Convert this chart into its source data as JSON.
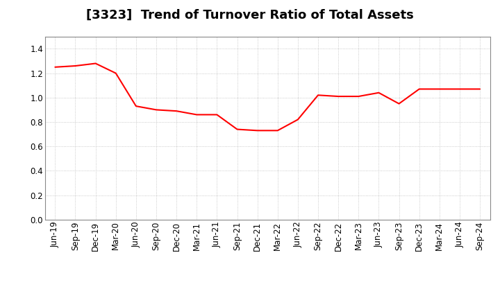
{
  "title": "[3323]  Trend of Turnover Ratio of Total Assets",
  "x_labels": [
    "Jun-19",
    "Sep-19",
    "Dec-19",
    "Mar-20",
    "Jun-20",
    "Sep-20",
    "Dec-20",
    "Mar-21",
    "Jun-21",
    "Sep-21",
    "Dec-21",
    "Mar-22",
    "Jun-22",
    "Sep-22",
    "Dec-22",
    "Mar-23",
    "Jun-23",
    "Sep-23",
    "Dec-23",
    "Mar-24",
    "Jun-24",
    "Sep-24"
  ],
  "values": [
    1.25,
    1.26,
    1.28,
    1.2,
    0.93,
    0.9,
    0.89,
    0.86,
    0.86,
    0.74,
    0.73,
    0.73,
    0.82,
    1.02,
    1.01,
    1.01,
    1.04,
    0.95,
    1.07,
    1.07,
    1.07,
    1.07
  ],
  "line_color": "#ff0000",
  "line_width": 1.5,
  "ylim": [
    0.0,
    1.5
  ],
  "yticks": [
    0.0,
    0.2,
    0.4,
    0.6,
    0.8,
    1.0,
    1.2,
    1.4
  ],
  "background_color": "#ffffff",
  "plot_bg_color": "#ffffff",
  "grid_color": "#bbbbbb",
  "title_fontsize": 13,
  "tick_fontsize": 8.5
}
